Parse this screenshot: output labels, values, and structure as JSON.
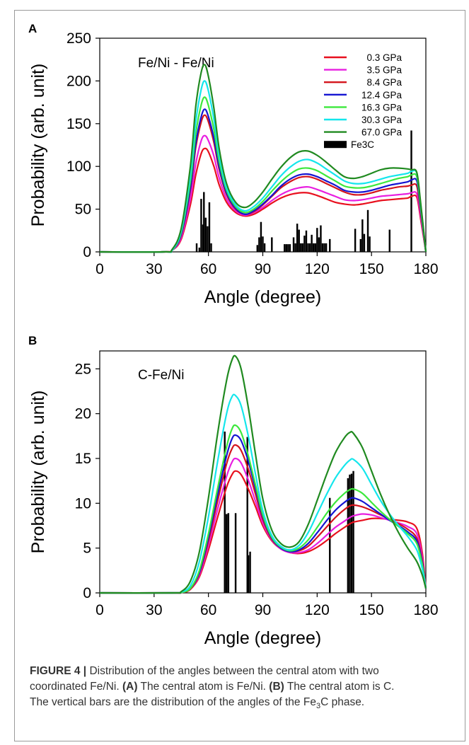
{
  "caption": {
    "label": "FIGURE 4 |",
    "line1": "Distribution of the angles between the central atom with two",
    "line2a": "coordinated Fe/Ni. ",
    "tagA": "(A)",
    "line2b": " The central atom is Fe/Ni. ",
    "tagB": "(B)",
    "line2c": " The central atom is C.",
    "line3a": "The vertical bars are the distribution of the angles of the Fe",
    "line3sub": "3",
    "line3b": "C phase."
  },
  "colors": {
    "0.3 GPa": "#e8101e",
    "3.5 GPa": "#e81ee0",
    "8.4 GPa": "#d4141c",
    "12.4 GPa": "#1414d2",
    "16.3 GPa": "#3ce83c",
    "30.3 GPa": "#14e6ec",
    "67.0 GPa": "#208a20",
    "Fe3C": "#000000"
  },
  "chart_data": [
    {
      "type": "line",
      "panel_label": "A",
      "title": "Fe/Ni - Fe/Ni",
      "xlabel": "Angle (degree)",
      "ylabel": "Probability (arb. unit)",
      "xlim": [
        0,
        180
      ],
      "ylim": [
        0,
        250
      ],
      "xticks": [
        0,
        30,
        60,
        90,
        120,
        150,
        180
      ],
      "yticks": [
        0,
        50,
        100,
        150,
        200,
        250
      ],
      "legend_position": "top-right",
      "legend": [
        "0.3 GPa",
        "3.5 GPa",
        "8.4 GPa",
        "12.4 GPa",
        "16.3 GPa",
        "30.3 GPa",
        "67.0 GPa",
        "Fe3C"
      ],
      "x": [
        0,
        35,
        40,
        45,
        50,
        53,
        56,
        58,
        60,
        63,
        66,
        70,
        75,
        80,
        85,
        90,
        95,
        100,
        105,
        110,
        115,
        120,
        125,
        130,
        135,
        140,
        145,
        150,
        155,
        160,
        165,
        170,
        172,
        175,
        177,
        180
      ],
      "series": [
        {
          "name": "0.3 GPa",
          "values": [
            0,
            0,
            2,
            15,
            55,
            90,
            115,
            121,
            117,
            100,
            78,
            58,
            46,
            42,
            44,
            50,
            57,
            63,
            67,
            69,
            69,
            66,
            62,
            58,
            56,
            55,
            56,
            58,
            60,
            61,
            62,
            63,
            65,
            64,
            40,
            0
          ]
        },
        {
          "name": "3.5 GPa",
          "values": [
            0,
            0,
            2,
            17,
            62,
            103,
            130,
            136,
            130,
            112,
            86,
            62,
            48,
            43,
            46,
            52,
            60,
            67,
            72,
            75,
            76,
            73,
            69,
            65,
            61,
            60,
            61,
            63,
            65,
            66,
            67,
            68,
            69,
            68,
            43,
            0
          ]
        },
        {
          "name": "8.4 GPa",
          "values": [
            0,
            0,
            2,
            20,
            72,
            122,
            152,
            160,
            152,
            128,
            96,
            67,
            50,
            44,
            47,
            55,
            65,
            75,
            82,
            87,
            88,
            85,
            80,
            75,
            70,
            67,
            67,
            69,
            72,
            74,
            76,
            77,
            78,
            77,
            48,
            0
          ]
        },
        {
          "name": "12.4 GPa",
          "values": [
            0,
            0,
            2,
            21,
            75,
            127,
            158,
            167,
            158,
            133,
            99,
            69,
            51,
            44,
            48,
            56,
            66,
            77,
            85,
            90,
            91,
            88,
            83,
            78,
            72,
            70,
            70,
            72,
            75,
            78,
            80,
            82,
            84,
            83,
            52,
            0
          ]
        },
        {
          "name": "16.3 GPa",
          "values": [
            0,
            0,
            2,
            23,
            82,
            138,
            172,
            181,
            171,
            143,
            105,
            72,
            53,
            46,
            50,
            59,
            71,
            82,
            91,
            97,
            98,
            95,
            89,
            83,
            77,
            75,
            75,
            77,
            80,
            83,
            86,
            88,
            90,
            88,
            55,
            0
          ]
        },
        {
          "name": "30.3 GPa",
          "values": [
            0,
            0,
            2,
            25,
            90,
            152,
            190,
            200,
            188,
            155,
            112,
            75,
            55,
            48,
            53,
            63,
            76,
            89,
            99,
            106,
            108,
            104,
            97,
            90,
            83,
            80,
            80,
            82,
            85,
            88,
            90,
            92,
            94,
            92,
            58,
            0
          ]
        },
        {
          "name": "67.0 GPa",
          "values": [
            0,
            0,
            3,
            28,
            100,
            170,
            210,
            219,
            205,
            168,
            120,
            80,
            58,
            52,
            58,
            70,
            85,
            99,
            110,
            117,
            118,
            113,
            105,
            96,
            88,
            86,
            88,
            92,
            96,
            98,
            98,
            97,
            96,
            93,
            60,
            0
          ]
        }
      ],
      "bars": {
        "name": "Fe3C",
        "x": [
          53.5,
          55,
          56,
          57,
          57.5,
          58.5,
          59.5,
          60.5,
          61.5,
          87,
          88,
          89,
          90,
          91,
          95,
          102,
          103,
          104,
          105,
          107,
          108,
          109,
          110,
          111,
          112,
          113,
          114,
          115,
          116,
          117,
          118,
          119,
          120,
          121,
          122,
          123,
          124,
          125,
          127,
          141,
          144,
          145,
          146,
          148,
          149,
          160,
          172
        ],
        "values": [
          10,
          5,
          62,
          32,
          70,
          40,
          30,
          58,
          10,
          8,
          17,
          35,
          18,
          10,
          17,
          9,
          9,
          9,
          9,
          17,
          10,
          33,
          26,
          10,
          10,
          19,
          25,
          10,
          10,
          20,
          10,
          10,
          28,
          17,
          31,
          10,
          10,
          10,
          15,
          27,
          15,
          38,
          21,
          49,
          18,
          26,
          142
        ]
      }
    },
    {
      "type": "line",
      "panel_label": "B",
      "title": "C-Fe/Ni",
      "xlabel": "Angle (degree)",
      "ylabel": "Probability (arb. unit)",
      "xlim": [
        0,
        180
      ],
      "ylim": [
        0,
        27
      ],
      "xticks": [
        0,
        30,
        60,
        90,
        120,
        150,
        180
      ],
      "yticks": [
        0,
        5,
        10,
        15,
        20,
        25
      ],
      "x": [
        0,
        40,
        45,
        50,
        55,
        60,
        65,
        70,
        73,
        75,
        78,
        82,
        86,
        90,
        95,
        100,
        105,
        110,
        115,
        120,
        125,
        130,
        135,
        138,
        140,
        145,
        150,
        155,
        160,
        165,
        170,
        175,
        178,
        180
      ],
      "series": [
        {
          "name": "0.3 GPa",
          "values": [
            0,
            0,
            0.05,
            0.4,
            1.8,
            4.8,
            8.4,
            11.8,
            13.2,
            13.6,
            13.2,
            11.6,
            9.6,
            7.5,
            5.8,
            4.9,
            4.5,
            4.4,
            4.6,
            5.1,
            5.8,
            6.6,
            7.3,
            7.7,
            7.9,
            8.1,
            8.3,
            8.3,
            8.2,
            8.1,
            7.9,
            7.2,
            4.5,
            0.5
          ]
        },
        {
          "name": "3.5 GPa",
          "values": [
            0,
            0,
            0.05,
            0.4,
            2.0,
            5.3,
            9.3,
            13.0,
            14.6,
            15.0,
            14.5,
            12.6,
            10.2,
            7.8,
            5.9,
            4.9,
            4.5,
            4.5,
            4.8,
            5.5,
            6.4,
            7.3,
            8.0,
            8.4,
            8.6,
            8.8,
            8.7,
            8.4,
            8.1,
            7.8,
            7.4,
            6.6,
            4.0,
            0.5
          ]
        },
        {
          "name": "8.4 GPa",
          "values": [
            0,
            0,
            0.05,
            0.4,
            2.2,
            5.8,
            10.2,
            14.4,
            16.1,
            16.5,
            15.9,
            13.8,
            11.0,
            8.2,
            6.0,
            5.0,
            4.6,
            4.7,
            5.2,
            6.2,
            7.3,
            8.4,
            9.3,
            9.7,
            9.8,
            9.6,
            9.2,
            8.7,
            8.2,
            7.7,
            7.1,
            6.1,
            3.6,
            0.5
          ]
        },
        {
          "name": "12.4 GPa",
          "values": [
            0,
            0,
            0.05,
            0.5,
            2.3,
            6.2,
            10.9,
            15.3,
            17.2,
            17.6,
            17.0,
            14.7,
            11.6,
            8.5,
            6.1,
            5.0,
            4.6,
            4.8,
            5.5,
            6.7,
            8.0,
            9.2,
            10.1,
            10.5,
            10.6,
            10.2,
            9.5,
            8.8,
            8.1,
            7.5,
            6.8,
            5.8,
            3.4,
            0.5
          ]
        },
        {
          "name": "16.3 GPa",
          "values": [
            0,
            0,
            0.05,
            0.5,
            2.5,
            6.6,
            11.6,
            16.3,
            18.3,
            18.7,
            17.9,
            15.3,
            12.0,
            8.7,
            6.2,
            5.1,
            4.7,
            5.0,
            5.9,
            7.3,
            8.8,
            10.1,
            11.1,
            11.5,
            11.6,
            11.1,
            10.1,
            9.1,
            8.2,
            7.4,
            6.6,
            5.5,
            3.2,
            0.5
          ]
        },
        {
          "name": "30.3 GPa",
          "values": [
            0,
            0,
            0.1,
            0.8,
            3.5,
            8.5,
            14.6,
            20.0,
            21.9,
            22.0,
            20.9,
            17.5,
            13.2,
            9.2,
            6.4,
            5.2,
            4.8,
            5.3,
            6.7,
            8.8,
            10.9,
            12.8,
            14.2,
            14.8,
            14.9,
            13.9,
            12.1,
            10.3,
            8.8,
            7.5,
            6.3,
            4.8,
            2.7,
            0.5
          ]
        },
        {
          "name": "67.0 GPa",
          "values": [
            0,
            0,
            0.15,
            1.3,
            4.6,
            10.6,
            17.7,
            23.7,
            26.0,
            26.4,
            25.0,
            20.7,
            15.4,
            10.5,
            7.0,
            5.5,
            5.1,
            5.7,
            7.6,
            10.3,
            13.1,
            15.6,
            17.3,
            17.9,
            17.8,
            16.2,
            13.6,
            11.0,
            8.7,
            6.7,
            5.0,
            3.5,
            2.0,
            0.5
          ]
        }
      ],
      "bars": {
        "name": "Fe3C",
        "x": [
          69,
          70,
          71,
          75,
          81.5,
          82,
          83,
          127,
          137,
          138,
          139,
          140
        ],
        "values": [
          18,
          8.8,
          8.9,
          8.9,
          17.4,
          4.2,
          4.6,
          10.6,
          12.8,
          13.2,
          13.3,
          13.6
        ]
      }
    }
  ]
}
